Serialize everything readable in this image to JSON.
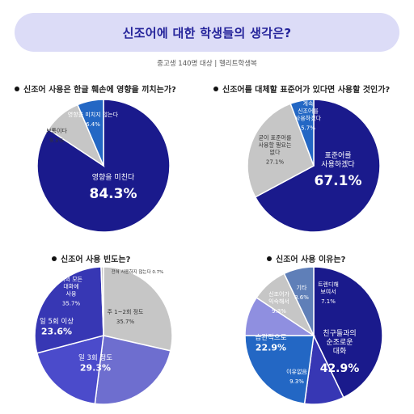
{
  "header": {
    "title": "신조어에 대한 학생들의 생각은?",
    "subtitle": "중고생 140명 대상 | 헬리트학생복"
  },
  "colors": {
    "navy": "#1a1a8c",
    "blue": "#2367c4",
    "gray": "#c6c6c6",
    "mid_indigo": "#3737b4",
    "light_indigo": "#4b4bcb",
    "periwinkle": "#6e6ecf",
    "lavender": "#8f8fe0",
    "steel": "#5f7fb8",
    "banner_bg": "#dcdcf7",
    "banner_text": "#24239a"
  },
  "questions": {
    "q1": "신조어 사용은 한글 훼손에 영향을 끼치는가?",
    "q2": "신조어를 대체할 표준어가 있다면 사용할 것인가?",
    "q3": "신조어 사용 빈도는?",
    "q4": "신조어 사용 이유는?"
  },
  "chart_data": [
    {
      "type": "pie",
      "title": "신조어 사용은 한글 훼손에 영향을 끼치는가?",
      "slices": [
        {
          "label": "영향을 미친다",
          "value": 84.3,
          "display": "84.3%",
          "color": "navy"
        },
        {
          "label": "보통이다",
          "value": 9.3,
          "display": "9.3%",
          "color": "gray"
        },
        {
          "label": "영향을 미치지 않는다",
          "value": 6.4,
          "display": "6.4%",
          "color": "blue"
        }
      ]
    },
    {
      "type": "pie",
      "title": "신조어를 대체할 표준어가 있다면 사용할 것인가?",
      "slices": [
        {
          "label": "표준어를 사용하겠다",
          "value": 67.1,
          "display": "67.1%",
          "color": "navy"
        },
        {
          "label": "굳이 표준어를 사용할 필요는 없다",
          "value": 27.1,
          "display": "27.1%",
          "color": "gray"
        },
        {
          "label": "계속 신조어를 사용하겠다",
          "value": 5.7,
          "display": "5.7%",
          "color": "blue"
        }
      ]
    },
    {
      "type": "pie",
      "title": "신조어 사용 빈도는?",
      "slices": [
        {
          "label": "주 1~2회 정도",
          "value": 35.7,
          "display": "35.7%",
          "color": "gray"
        },
        {
          "label": "일 3회 정도",
          "value": 29.3,
          "display": "29.3%",
          "color": "periwinkle"
        },
        {
          "label": "일 5회 이상",
          "value": 23.6,
          "display": "23.6%",
          "color": "light_indigo"
        },
        {
          "label": "거의 모든 대화에 사용",
          "value": 35.7,
          "display": "35.7%",
          "color": "mid_indigo"
        },
        {
          "label": "전혀 사용하지 않는다",
          "value": 0.7,
          "display": "0.7%",
          "color": "gray"
        }
      ]
    },
    {
      "type": "pie",
      "title": "신조어 사용 이유는?",
      "slices": [
        {
          "label": "친구들과의 순조로운 대화",
          "value": 42.9,
          "display": "42.9%",
          "color": "navy"
        },
        {
          "label": "이유없음",
          "value": 9.3,
          "display": "9.3%",
          "color": "mid_indigo"
        },
        {
          "label": "습관적으로",
          "value": 22.9,
          "display": "22.9%",
          "color": "blue"
        },
        {
          "label": "신조어가 익숙해서",
          "value": 9.3,
          "display": "9.3%",
          "color": "lavender"
        },
        {
          "label": "기타",
          "value": 8.6,
          "display": "8.6%",
          "color": "gray"
        },
        {
          "label": "트렌디해 보여서",
          "value": 7.1,
          "display": "7.1%",
          "color": "steel"
        }
      ]
    }
  ]
}
